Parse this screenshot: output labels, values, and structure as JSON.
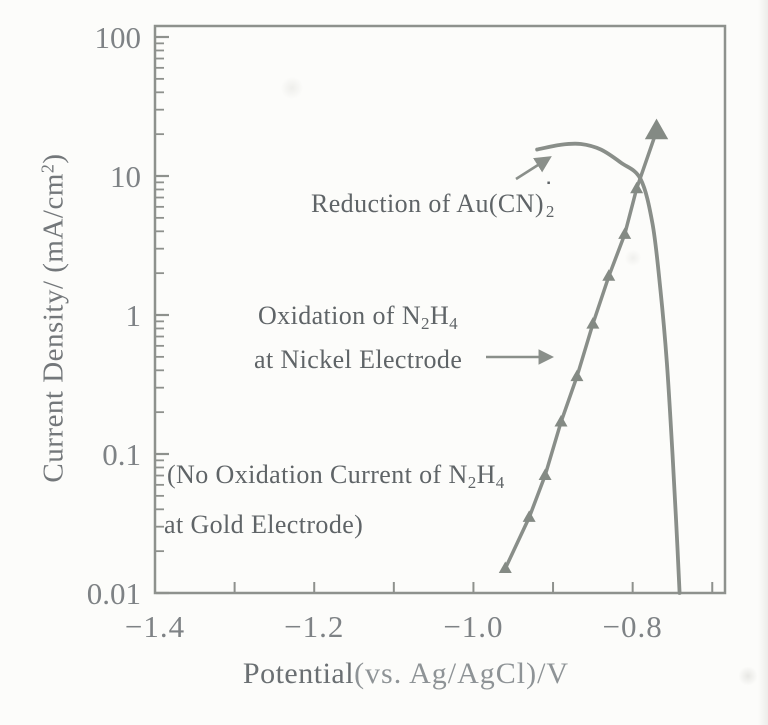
{
  "figure": {
    "y_axis_title": {
      "t1": "Current Density/ (mA/cm",
      "sup": "2",
      "t2": ")"
    },
    "x_axis_title": {
      "t1": "Potential",
      "t2": "(vs. Ag/AgCl)/V"
    },
    "annotations": {
      "reduction": {
        "text": "Reduction of Au(CN)",
        "sub": "2",
        "sup": "▪"
      },
      "oxidation": {
        "l1a": "Oxidation of N",
        "l1s1": "2",
        "l1b": "H",
        "l1s2": "4",
        "line2": "at Nickel Electrode"
      },
      "no_oxidation": {
        "l1a": "(No Oxidation Current of N",
        "l1s1": "2",
        "l1b": "H",
        "l1s2": "4",
        "line2": "at Gold Electrode)"
      }
    }
  },
  "chart_data": {
    "type": "line",
    "title": "",
    "xlabel": "Potential (vs. Ag/AgCl)/V",
    "ylabel": "Current Density/ (mA/cm2)",
    "x_axis": {
      "scale": "linear",
      "min": -1.4,
      "max": -0.684,
      "ticks": [
        -1.3,
        -1.2,
        -1.1,
        -1.0,
        -0.9,
        -0.8,
        -0.7
      ],
      "labeled_ticks": [
        -1.4,
        -1.2,
        -1.0,
        -0.8
      ],
      "tick_labels": [
        "−1.4",
        "−1.2",
        "−1.0",
        "−0.8"
      ]
    },
    "y_axis": {
      "scale": "log",
      "min": 0.01,
      "max": 100,
      "labeled_ticks": [
        100,
        10,
        1,
        0.1,
        0.01
      ],
      "tick_labels": [
        "100",
        "10",
        "1",
        "0.1",
        "0.01"
      ],
      "minor_ticks": "log-decade-2-to-9"
    },
    "grid": false,
    "legend": false,
    "series": [
      {
        "name": "Oxidation of N2H4 at Nickel Electrode",
        "style": "straight-line-with-triangle-markers",
        "color": "#898e89",
        "x": [
          -0.96,
          -0.93,
          -0.91,
          -0.89,
          -0.87,
          -0.85,
          -0.83,
          -0.81,
          -0.795,
          -0.77
        ],
        "y": [
          0.015,
          0.035,
          0.07,
          0.17,
          0.36,
          0.86,
          1.9,
          3.8,
          8.1,
          21
        ]
      },
      {
        "name": "Reduction of Au(CN)2−",
        "style": "smooth-curve-no-markers",
        "color": "#898e89",
        "x": [
          -0.92,
          -0.89,
          -0.865,
          -0.84,
          -0.815,
          -0.79,
          -0.775,
          -0.765,
          -0.757,
          -0.75,
          -0.745,
          -0.741
        ],
        "y": [
          15.5,
          16.8,
          17.0,
          15.5,
          12.5,
          9.5,
          4.5,
          1.5,
          0.45,
          0.1,
          0.03,
          0.01
        ]
      }
    ]
  }
}
